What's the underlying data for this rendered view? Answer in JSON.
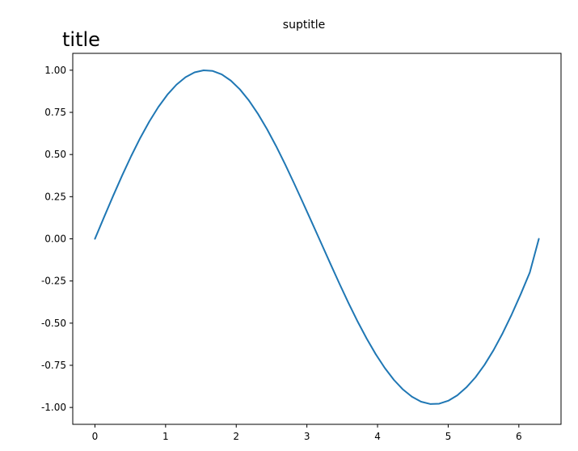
{
  "suptitle": "suptitle",
  "chart_data": {
    "type": "line",
    "title": "title",
    "title_align": "left",
    "xlabel": "",
    "ylabel": "",
    "xlim": [
      -0.314,
      6.597
    ],
    "ylim": [
      -1.1,
      1.1
    ],
    "xticks": [
      0,
      1,
      2,
      3,
      4,
      5,
      6
    ],
    "xtick_labels": [
      "0",
      "1",
      "2",
      "3",
      "4",
      "5",
      "6"
    ],
    "yticks": [
      1.0,
      0.75,
      0.5,
      0.25,
      0.0,
      -0.25,
      -0.5,
      -0.75,
      -1.0
    ],
    "ytick_labels": [
      "1.00",
      "0.75",
      "0.50",
      "0.25",
      "0.00",
      "-0.25",
      "-0.50",
      "-0.75",
      "-1.00"
    ],
    "grid": false,
    "series": [
      {
        "color": "#1f77b4",
        "x": [
          0.0,
          0.1282,
          0.2565,
          0.3847,
          0.5129,
          0.6411,
          0.7694,
          0.8976,
          1.0258,
          1.1541,
          1.2823,
          1.4105,
          1.5387,
          1.667,
          1.7952,
          1.9234,
          2.0517,
          2.1799,
          2.3081,
          2.4363,
          2.5646,
          2.6928,
          2.821,
          2.9493,
          3.0775,
          3.2057,
          3.3339,
          3.4622,
          3.5904,
          3.7186,
          3.8468,
          3.9751,
          4.1033,
          4.2315,
          4.3598,
          4.488,
          4.6162,
          4.7444,
          4.8727,
          5.0009,
          5.1291,
          5.2574,
          5.3856,
          5.5138,
          5.642,
          5.7703,
          5.8985,
          6.0267,
          6.155,
          6.2832
        ],
        "y": [
          0.0,
          0.1279,
          0.2537,
          0.3753,
          0.4907,
          0.5981,
          0.6957,
          0.7818,
          0.8551,
          0.9143,
          0.9585,
          0.9872,
          0.9995,
          0.9955,
          0.9749,
          0.9383,
          0.8864,
          0.8201,
          0.7408,
          0.6501,
          0.5495,
          0.4412,
          0.3271,
          0.2096,
          0.0908,
          -0.0288,
          -0.149,
          -0.2672,
          -0.3818,
          -0.4907,
          -0.5921,
          -0.6845,
          -0.7663,
          -0.8364,
          -0.8934,
          -0.9367,
          -0.9658,
          -0.9793,
          -0.9776,
          -0.9603,
          -0.9281,
          -0.881,
          -0.8214,
          -0.7475,
          -0.66,
          -0.56,
          -0.4488,
          -0.328,
          -0.1993,
          0.0
        ]
      }
    ]
  }
}
